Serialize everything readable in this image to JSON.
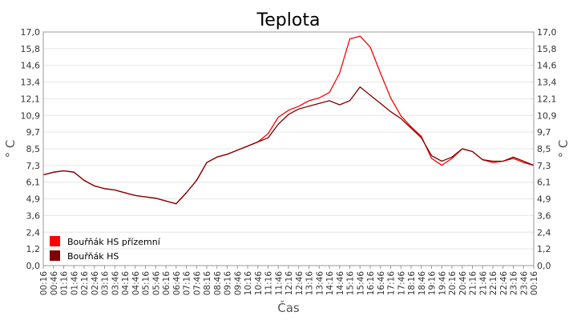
{
  "chart_data": {
    "type": "line",
    "title": "Teplota",
    "xlabel": "Čas",
    "ylabel": "° C",
    "ylabel_right": "° C",
    "ylim": [
      0,
      17.0
    ],
    "y_ticks": [
      "0,0",
      "1,2",
      "2,4",
      "3,6",
      "4,9",
      "6,1",
      "7,3",
      "8,5",
      "9,7",
      "10,9",
      "12,1",
      "13,4",
      "14,6",
      "15,8",
      "17,0"
    ],
    "x_ticks": [
      "00:16",
      "00:46",
      "01:16",
      "01:46",
      "02:16",
      "02:46",
      "03:16",
      "03:46",
      "04:16",
      "04:46",
      "05:16",
      "05:46",
      "06:16",
      "06:46",
      "07:16",
      "07:46",
      "08:16",
      "08:46",
      "09:16",
      "09:46",
      "10:16",
      "10:46",
      "11:16",
      "11:46",
      "12:16",
      "12:46",
      "13:16",
      "13:46",
      "14:16",
      "14:46",
      "15:16",
      "15:46",
      "16:16",
      "16:46",
      "17:16",
      "17:46",
      "18:16",
      "18:46",
      "19:16",
      "19:46",
      "20:16",
      "20:46",
      "21:16",
      "21:46",
      "22:16",
      "22:46",
      "23:16",
      "23:46",
      "00:16"
    ],
    "grid": true,
    "legend_position": "bottom-left",
    "series": [
      {
        "name": "Bouřňák HS přízemní",
        "color": "#ff0000",
        "x": [
          "00:16",
          "00:46",
          "01:16",
          "01:46",
          "02:16",
          "02:46",
          "03:16",
          "03:46",
          "04:16",
          "04:46",
          "05:16",
          "05:46",
          "06:16",
          "06:46",
          "07:16",
          "07:46",
          "08:16",
          "08:46",
          "09:16",
          "09:46",
          "10:16",
          "10:46",
          "11:16",
          "11:46",
          "12:16",
          "12:46",
          "13:16",
          "13:46",
          "14:16",
          "14:46",
          "15:16",
          "15:46",
          "16:16",
          "16:46",
          "17:16",
          "17:46",
          "18:16",
          "18:46",
          "19:16",
          "19:46",
          "20:16",
          "20:46",
          "21:16",
          "21:46",
          "22:16",
          "22:46",
          "23:16",
          "23:46",
          "00:16"
        ],
        "values": [
          6.6,
          6.8,
          6.9,
          6.8,
          6.2,
          5.8,
          5.6,
          5.5,
          5.3,
          5.1,
          5.0,
          4.9,
          4.7,
          4.5,
          5.3,
          6.2,
          7.5,
          7.9,
          8.1,
          8.4,
          8.7,
          9.0,
          9.6,
          10.8,
          11.3,
          11.6,
          12.0,
          12.2,
          12.6,
          14.0,
          16.5,
          16.7,
          15.9,
          14.0,
          12.2,
          10.9,
          10.1,
          9.4,
          7.8,
          7.3,
          7.8,
          8.5,
          8.3,
          7.7,
          7.5,
          7.6,
          7.8,
          7.5,
          7.3
        ]
      },
      {
        "name": "Bouřňák HS",
        "color": "#800000",
        "x": [
          "00:16",
          "00:46",
          "01:16",
          "01:46",
          "02:16",
          "02:46",
          "03:16",
          "03:46",
          "04:16",
          "04:46",
          "05:16",
          "05:46",
          "06:16",
          "06:46",
          "07:16",
          "07:46",
          "08:16",
          "08:46",
          "09:16",
          "09:46",
          "10:16",
          "10:46",
          "11:16",
          "11:46",
          "12:16",
          "12:46",
          "13:16",
          "13:46",
          "14:16",
          "14:46",
          "15:16",
          "15:46",
          "16:16",
          "16:46",
          "17:16",
          "17:46",
          "18:16",
          "18:46",
          "19:16",
          "19:46",
          "20:16",
          "20:46",
          "21:16",
          "21:46",
          "22:16",
          "22:46",
          "23:16",
          "23:46",
          "00:16"
        ],
        "values": [
          6.6,
          6.8,
          6.9,
          6.8,
          6.2,
          5.8,
          5.6,
          5.5,
          5.3,
          5.1,
          5.0,
          4.9,
          4.7,
          4.5,
          5.3,
          6.2,
          7.5,
          7.9,
          8.1,
          8.4,
          8.7,
          9.0,
          9.3,
          10.3,
          11.0,
          11.4,
          11.6,
          11.8,
          12.0,
          11.7,
          12.0,
          13.0,
          12.4,
          11.8,
          11.2,
          10.7,
          10.0,
          9.3,
          8.0,
          7.6,
          7.9,
          8.5,
          8.3,
          7.7,
          7.6,
          7.6,
          7.9,
          7.6,
          7.3
        ]
      }
    ]
  }
}
